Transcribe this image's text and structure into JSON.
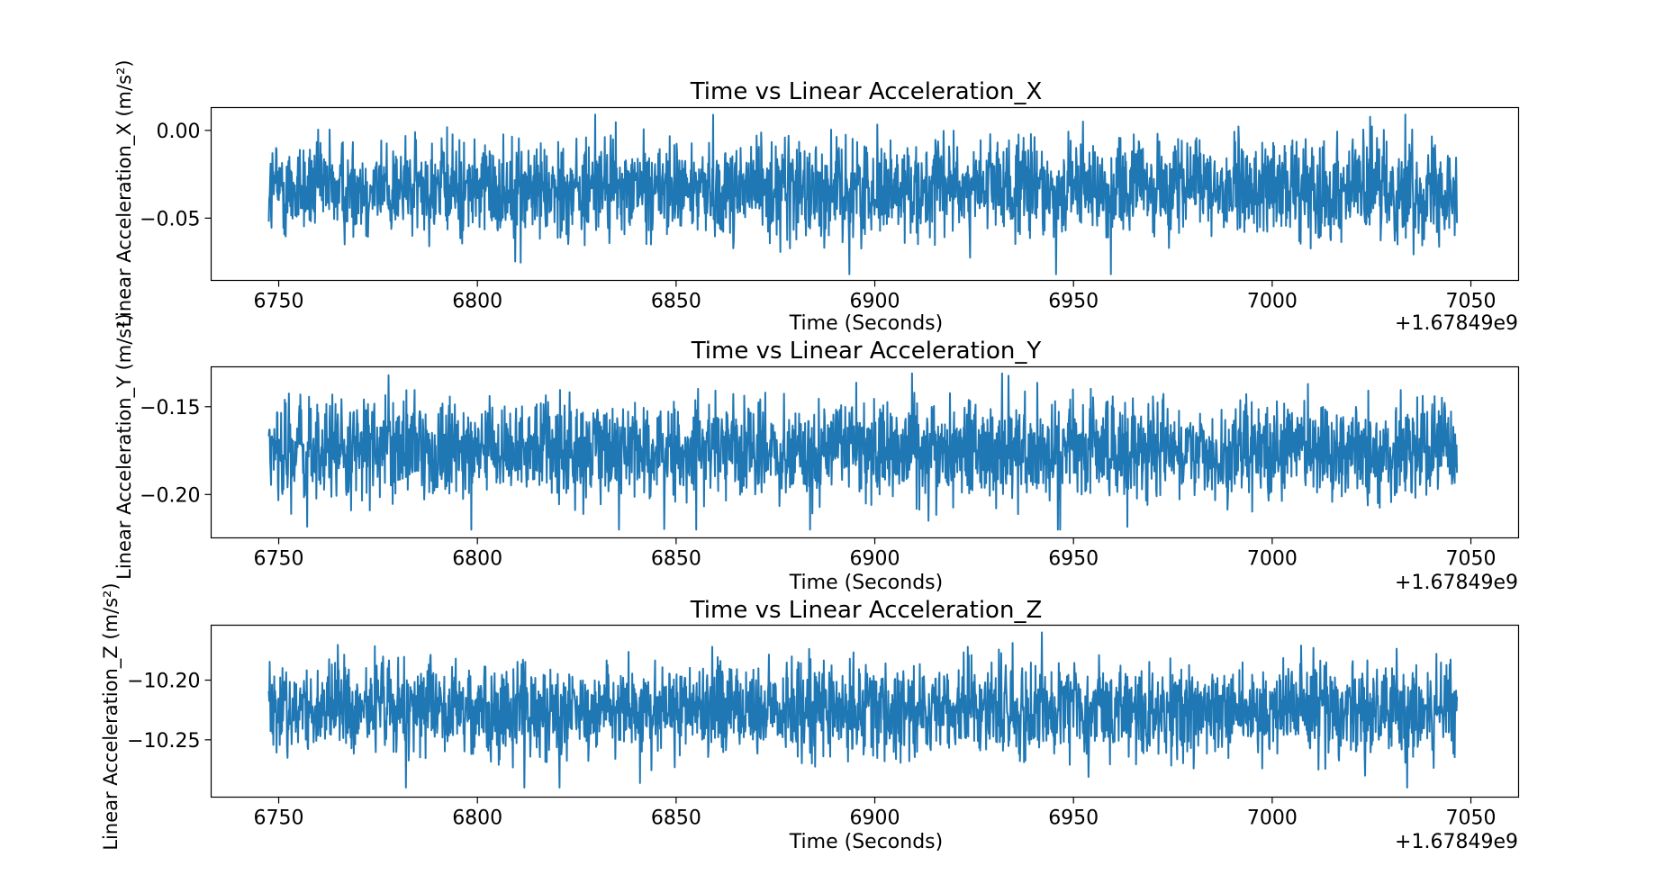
{
  "figure": {
    "background": "#ffffff"
  },
  "chart_data": [
    {
      "type": "line",
      "title": "Time vs Linear Acceleration_X",
      "xlabel": "Time (Seconds)",
      "ylabel": "Linear Acceleration_X (m/s²)",
      "offset_label": "+1.67849e9",
      "xlim": [
        6733,
        7062
      ],
      "ylim": [
        -0.0855,
        0.013
      ],
      "xticks": [
        6750,
        6800,
        6850,
        6900,
        6950,
        7000,
        7050
      ],
      "xtick_labels": [
        "6750",
        "6800",
        "6850",
        "6900",
        "6950",
        "7000",
        "7050"
      ],
      "yticks": [
        0.0,
        -0.05
      ],
      "ytick_labels": [
        "0.00",
        "−0.05"
      ],
      "grid": false,
      "series": [
        {
          "color": "#1f77b4",
          "x_range": [
            6747.5,
            7046.5
          ],
          "mean": -0.033,
          "band": 0.028,
          "min": -0.082,
          "max": 0.009
        }
      ]
    },
    {
      "type": "line",
      "title": "Time vs Linear Acceleration_Y",
      "xlabel": "Time (Seconds)",
      "ylabel": "Linear Acceleration_Y (m/s²)",
      "offset_label": "+1.67849e9",
      "xlim": [
        6733,
        7062
      ],
      "ylim": [
        -0.2247,
        -0.1273
      ],
      "xticks": [
        6750,
        6800,
        6850,
        6900,
        6950,
        7000,
        7050
      ],
      "xtick_labels": [
        "6750",
        "6800",
        "6850",
        "6900",
        "6950",
        "7000",
        "7050"
      ],
      "yticks": [
        -0.15,
        -0.2
      ],
      "ytick_labels": [
        "−0.15",
        "−0.20"
      ],
      "grid": false,
      "series": [
        {
          "color": "#1f77b4",
          "x_range": [
            6747.5,
            7046.5
          ],
          "mean": -0.175,
          "band": 0.028,
          "min": -0.22,
          "max": -0.131
        }
      ]
    },
    {
      "type": "line",
      "title": "Time vs Linear Acceleration_Z",
      "xlabel": "Time (Seconds)",
      "ylabel": "Linear Acceleration_Z (m/s²)",
      "offset_label": "+1.67849e9",
      "xlim": [
        6733,
        7062
      ],
      "ylim": [
        -10.298,
        -10.154
      ],
      "xticks": [
        6750,
        6800,
        6850,
        6900,
        6950,
        7000,
        7050
      ],
      "xtick_labels": [
        "6750",
        "6800",
        "6850",
        "6900",
        "6950",
        "7000",
        "7050"
      ],
      "yticks": [
        -10.2,
        -10.25
      ],
      "ytick_labels": [
        "−10.20",
        "−10.25"
      ],
      "grid": false,
      "series": [
        {
          "color": "#1f77b4",
          "x_range": [
            6747.5,
            7046.5
          ],
          "mean": -10.225,
          "band": 0.04,
          "min": -10.29,
          "max": -10.16
        }
      ]
    }
  ]
}
